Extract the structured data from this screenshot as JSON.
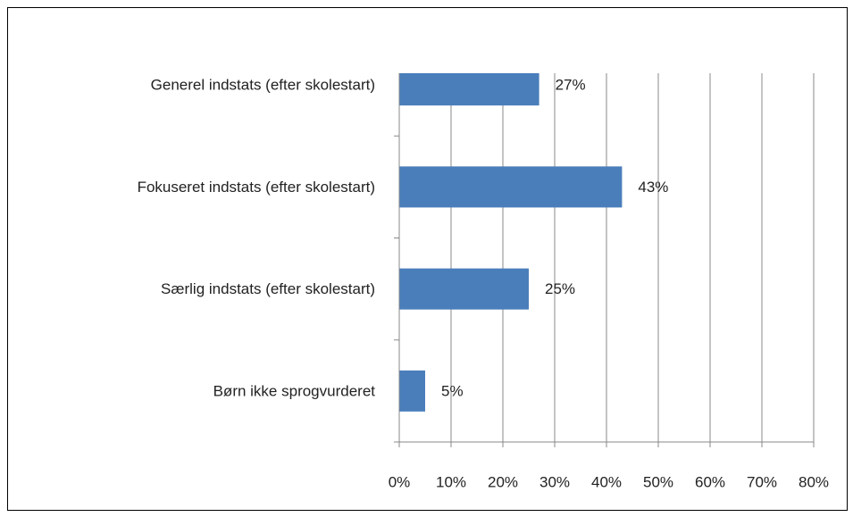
{
  "chart_data": {
    "type": "barh",
    "categories": [
      "Generel indstats (efter skolestart)",
      "Fokuseret indstats (efter skolestart)",
      "Særlig indstats (efter skolestart)",
      "Børn ikke sprogvurderet"
    ],
    "values": [
      27,
      43,
      25,
      5
    ],
    "value_labels": [
      "27%",
      "43%",
      "25%",
      "5%"
    ],
    "color": "#4a7ebb",
    "xlim": [
      0,
      80
    ],
    "xticks": [
      {
        "value": 0,
        "label": "0%"
      },
      {
        "value": 10,
        "label": "10%"
      },
      {
        "value": 20,
        "label": "20%"
      },
      {
        "value": 30,
        "label": "30%"
      },
      {
        "value": 40,
        "label": "40%"
      },
      {
        "value": 50,
        "label": "50%"
      },
      {
        "value": 60,
        "label": "60%"
      },
      {
        "value": 70,
        "label": "70%"
      },
      {
        "value": 80,
        "label": "80%"
      }
    ],
    "grid": true
  }
}
